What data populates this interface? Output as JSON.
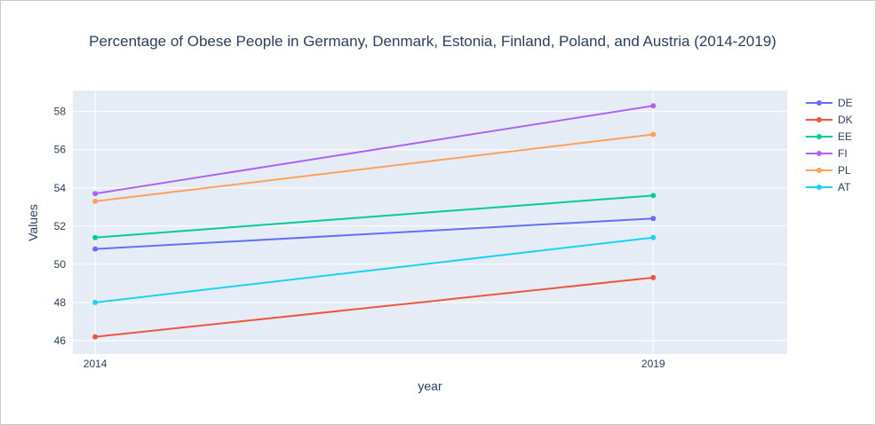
{
  "chart_data": {
    "type": "line",
    "title": "Percentage of Obese People in Germany, Denmark, Estonia, Finland, Poland, and Austria (2014-2019)",
    "xlabel": "year",
    "ylabel": "Values",
    "x": [
      2014,
      2019
    ],
    "xlim": [
      2013.8,
      2020.2
    ],
    "ylim": [
      45.3,
      59.1
    ],
    "yticks": [
      46,
      48,
      50,
      52,
      54,
      56,
      58
    ],
    "grid": true,
    "legend_position": "top-right",
    "series": [
      {
        "name": "DE",
        "color": "#636efa",
        "values": [
          50.8,
          52.4
        ]
      },
      {
        "name": "DK",
        "color": "#EF553B",
        "values": [
          46.2,
          49.3
        ]
      },
      {
        "name": "EE",
        "color": "#00cc96",
        "values": [
          51.4,
          53.6
        ]
      },
      {
        "name": "FI",
        "color": "#ab63fa",
        "values": [
          53.7,
          58.3
        ]
      },
      {
        "name": "PL",
        "color": "#FFA15A",
        "values": [
          53.3,
          56.8
        ]
      },
      {
        "name": "AT",
        "color": "#19d3f3",
        "values": [
          48.0,
          51.4
        ]
      }
    ]
  }
}
